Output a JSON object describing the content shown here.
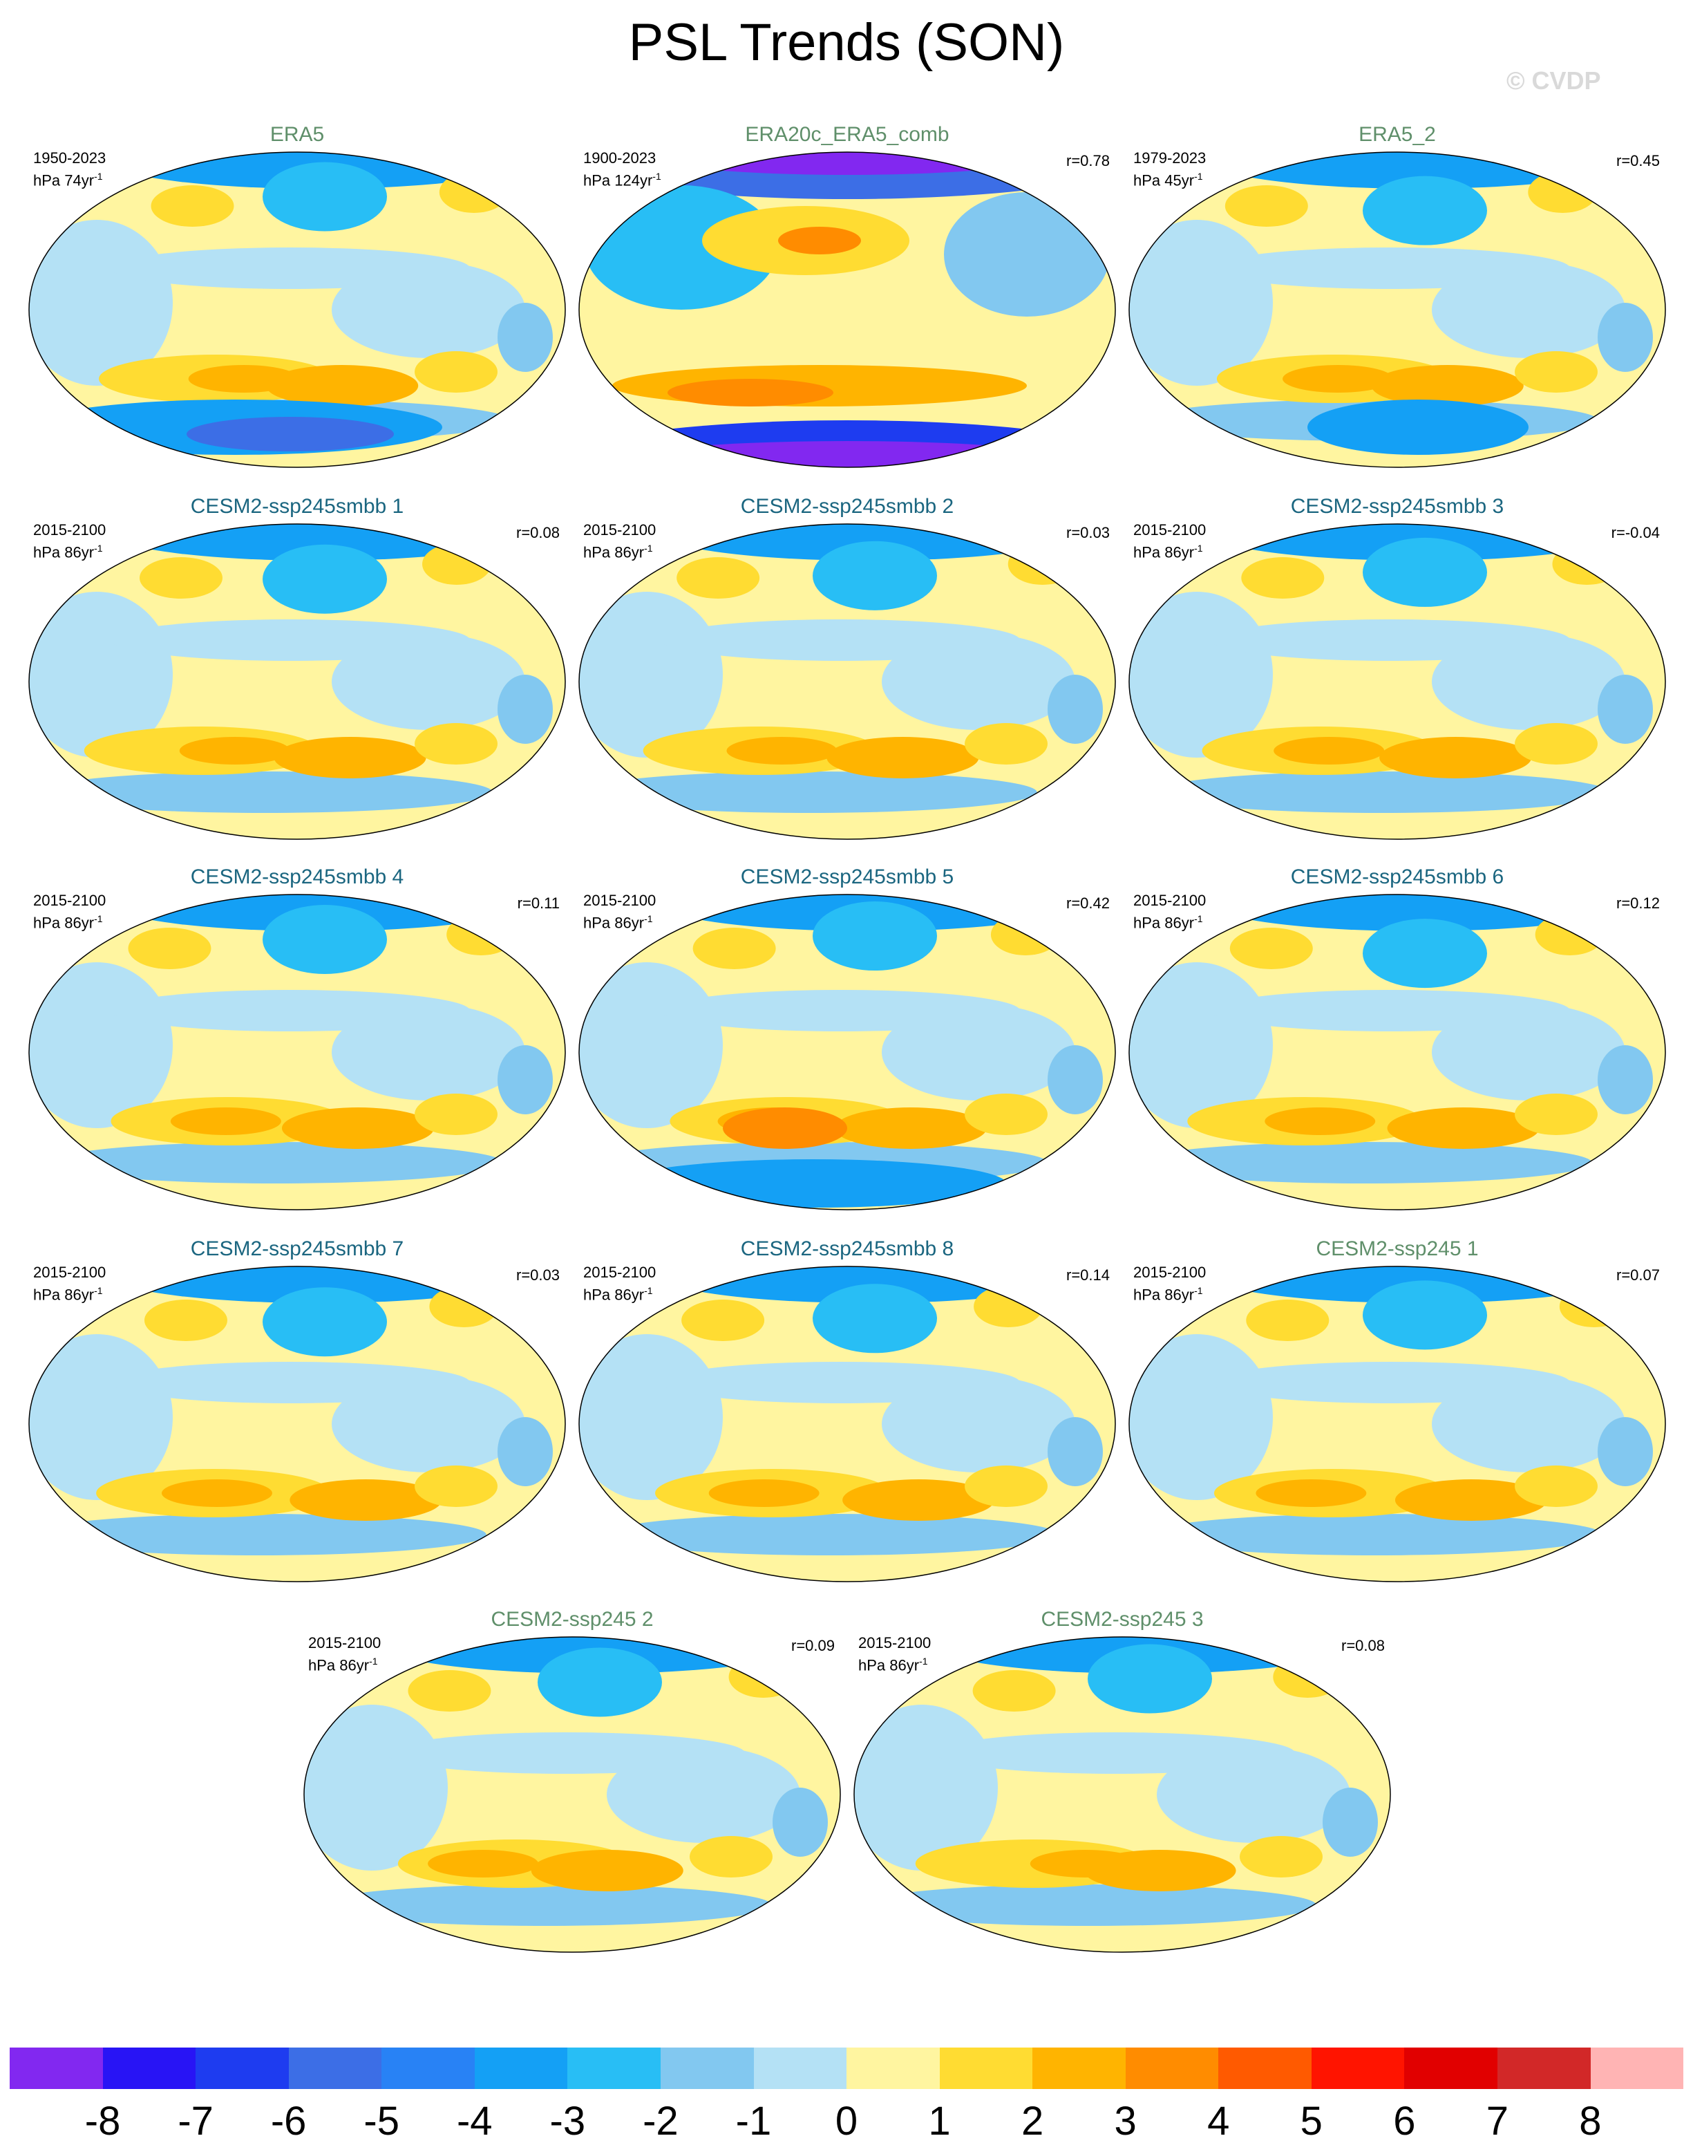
{
  "title": "PSL Trends (SON)",
  "watermark": "© CVDP",
  "panels": [
    {
      "name": "ERA5",
      "period": "1950-2023",
      "units": "hPa 74yr",
      "r": "",
      "kind": "obs"
    },
    {
      "name": "ERA20c_ERA5_comb",
      "period": "1900-2023",
      "units": "hPa 124yr",
      "r": "r=0.78",
      "kind": "obs"
    },
    {
      "name": "ERA5_2",
      "period": "1979-2023",
      "units": "hPa 45yr",
      "r": "r=0.45",
      "kind": "obs"
    },
    {
      "name": "CESM2-ssp245smbb 1",
      "period": "2015-2100",
      "units": "hPa 86yr",
      "r": "r=0.08",
      "kind": "sim"
    },
    {
      "name": "CESM2-ssp245smbb 2",
      "period": "2015-2100",
      "units": "hPa 86yr",
      "r": "r=0.03",
      "kind": "sim"
    },
    {
      "name": "CESM2-ssp245smbb 3",
      "period": "2015-2100",
      "units": "hPa 86yr",
      "r": "r=-0.04",
      "kind": "sim"
    },
    {
      "name": "CESM2-ssp245smbb 4",
      "period": "2015-2100",
      "units": "hPa 86yr",
      "r": "r=0.11",
      "kind": "sim"
    },
    {
      "name": "CESM2-ssp245smbb 5",
      "period": "2015-2100",
      "units": "hPa 86yr",
      "r": "r=0.42",
      "kind": "sim"
    },
    {
      "name": "CESM2-ssp245smbb 6",
      "period": "2015-2100",
      "units": "hPa 86yr",
      "r": "r=0.12",
      "kind": "sim"
    },
    {
      "name": "CESM2-ssp245smbb 7",
      "period": "2015-2100",
      "units": "hPa 86yr",
      "r": "r=0.03",
      "kind": "sim"
    },
    {
      "name": "CESM2-ssp245smbb 8",
      "period": "2015-2100",
      "units": "hPa 86yr",
      "r": "r=0.14",
      "kind": "sim"
    },
    {
      "name": "CESM2-ssp245 1",
      "period": "2015-2100",
      "units": "hPa 86yr",
      "r": "r=0.07",
      "kind": "obs"
    },
    {
      "name": "CESM2-ssp245 2",
      "period": "2015-2100",
      "units": "hPa 86yr",
      "r": "r=0.09",
      "kind": "obs"
    },
    {
      "name": "CESM2-ssp245 3",
      "period": "2015-2100",
      "units": "hPa 86yr",
      "r": "r=0.08",
      "kind": "obs"
    }
  ],
  "unit_exponent": "-1",
  "colorbar": {
    "colors": [
      "#8228f0",
      "#2814f5",
      "#1e3cf0",
      "#3c6ee6",
      "#2882f5",
      "#14a0f5",
      "#28bef5",
      "#82c8f0",
      "#b4e1f5",
      "#fff5a0",
      "#ffdc32",
      "#ffb400",
      "#ff8c00",
      "#ff5a00",
      "#ff1400",
      "#e10000",
      "#d22828",
      "#ffb4b4"
    ],
    "labels": [
      "-8",
      "-7",
      "-6",
      "-5",
      "-4",
      "-3",
      "-2",
      "-1",
      "0",
      "1",
      "2",
      "3",
      "4",
      "5",
      "6",
      "7",
      "8"
    ]
  }
}
